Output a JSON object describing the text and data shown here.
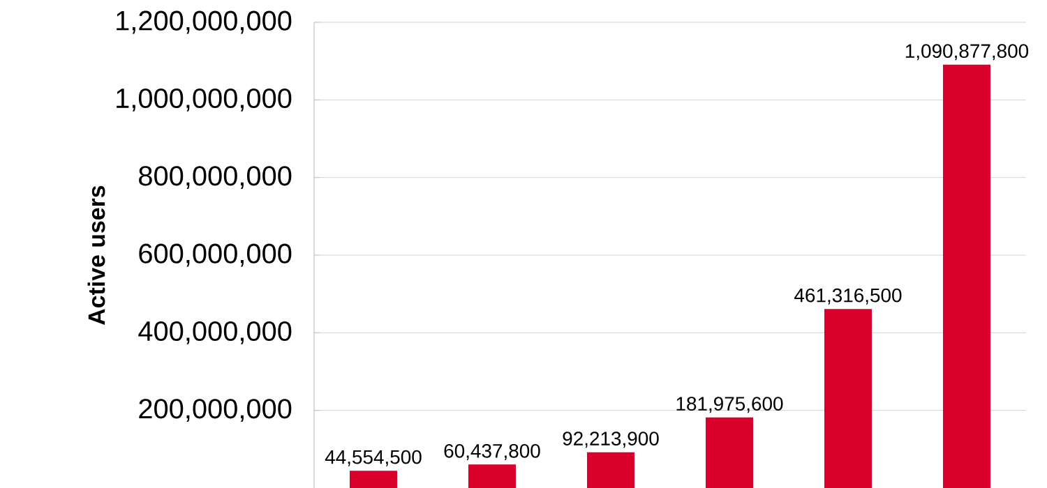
{
  "chart_data": {
    "type": "bar",
    "ylabel": "Active users",
    "categories": [
      null,
      null,
      null,
      null,
      null,
      null
    ],
    "values": [
      44554500,
      60437800,
      92213900,
      181975600,
      461316500,
      1090877800
    ],
    "value_labels": [
      "44,554,500",
      "60,437,800",
      "92,213,900",
      "181,975,600",
      "461,316,500",
      "1,090,877,800"
    ],
    "color": "#d9002b",
    "ylim": [
      0,
      1200000000
    ],
    "yticks": [
      {
        "value": 200000000,
        "label": "200,000,000"
      },
      {
        "value": 400000000,
        "label": "400,000,000"
      },
      {
        "value": 600000000,
        "label": "600,000,000"
      },
      {
        "value": 800000000,
        "label": "800,000,000"
      },
      {
        "value": 1000000000,
        "label": "1,000,000,000"
      },
      {
        "value": 1200000000,
        "label": "1,200,000,000"
      }
    ],
    "grid": "y",
    "tick_labels": "y"
  }
}
